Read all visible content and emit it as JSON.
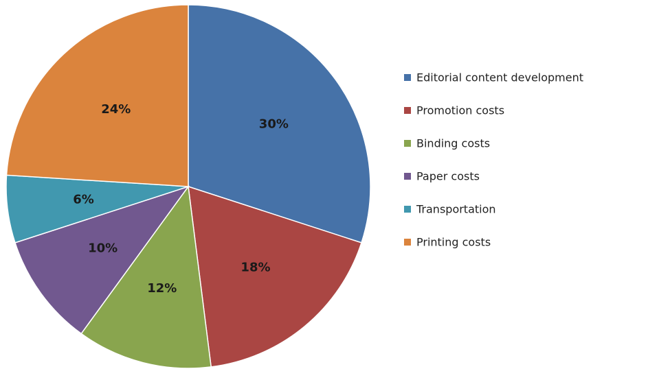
{
  "chart_data": {
    "type": "pie",
    "categories": [
      "Editorial content development",
      "Promotion costs",
      "Binding costs",
      "Paper costs",
      "Transportation",
      "Printing costs"
    ],
    "values": [
      30,
      18,
      12,
      10,
      6,
      24
    ],
    "value_labels": [
      "30%",
      "18%",
      "12%",
      "10%",
      "6%",
      "24%"
    ],
    "colors": [
      "#4672a8",
      "#aa4643",
      "#89a54e",
      "#71588f",
      "#4198af",
      "#db843d"
    ],
    "legend": "right"
  }
}
